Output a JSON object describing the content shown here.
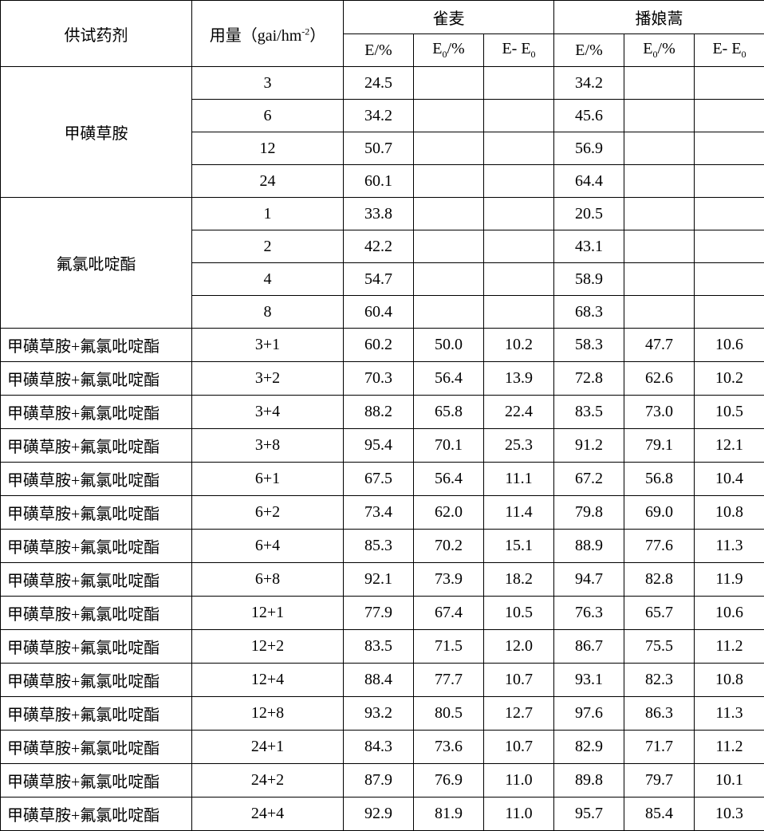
{
  "headers": {
    "agent": "供试药剂",
    "dose": "用量（gai/hm",
    "dose_sup": "-2",
    "dose_close": "）",
    "weed1": "雀麦",
    "weed2": "播娘蒿",
    "E": "E/%",
    "E0": "E",
    "E0_sub": "0",
    "E0_suffix": "/%",
    "diff_a": "E- E",
    "diff_sub": "0"
  },
  "single": [
    {
      "name": "甲磺草胺",
      "rows": [
        {
          "dose": "3",
          "w1": "24.5",
          "w2": "34.2"
        },
        {
          "dose": "6",
          "w1": "34.2",
          "w2": "45.6"
        },
        {
          "dose": "12",
          "w1": "50.7",
          "w2": "56.9"
        },
        {
          "dose": "24",
          "w1": "60.1",
          "w2": "64.4"
        }
      ]
    },
    {
      "name": "氟氯吡啶酯",
      "rows": [
        {
          "dose": "1",
          "w1": "33.8",
          "w2": "20.5"
        },
        {
          "dose": "2",
          "w1": "42.2",
          "w2": "43.1"
        },
        {
          "dose": "4",
          "w1": "54.7",
          "w2": "58.9"
        },
        {
          "dose": "8",
          "w1": "60.4",
          "w2": "68.3"
        }
      ]
    }
  ],
  "combo_name": "甲磺草胺+氟氯吡啶酯",
  "combo": [
    {
      "dose": "3+1",
      "w1e": "60.2",
      "w1e0": "50.0",
      "w1d": "10.2",
      "w2e": "58.3",
      "w2e0": "47.7",
      "w2d": "10.6"
    },
    {
      "dose": "3+2",
      "w1e": "70.3",
      "w1e0": "56.4",
      "w1d": "13.9",
      "w2e": "72.8",
      "w2e0": "62.6",
      "w2d": "10.2"
    },
    {
      "dose": "3+4",
      "w1e": "88.2",
      "w1e0": "65.8",
      "w1d": "22.4",
      "w2e": "83.5",
      "w2e0": "73.0",
      "w2d": "10.5"
    },
    {
      "dose": "3+8",
      "w1e": "95.4",
      "w1e0": "70.1",
      "w1d": "25.3",
      "w2e": "91.2",
      "w2e0": "79.1",
      "w2d": "12.1"
    },
    {
      "dose": "6+1",
      "w1e": "67.5",
      "w1e0": "56.4",
      "w1d": "11.1",
      "w2e": "67.2",
      "w2e0": "56.8",
      "w2d": "10.4"
    },
    {
      "dose": "6+2",
      "w1e": "73.4",
      "w1e0": "62.0",
      "w1d": "11.4",
      "w2e": "79.8",
      "w2e0": "69.0",
      "w2d": "10.8"
    },
    {
      "dose": "6+4",
      "w1e": "85.3",
      "w1e0": "70.2",
      "w1d": "15.1",
      "w2e": "88.9",
      "w2e0": "77.6",
      "w2d": "11.3"
    },
    {
      "dose": "6+8",
      "w1e": "92.1",
      "w1e0": "73.9",
      "w1d": "18.2",
      "w2e": "94.7",
      "w2e0": "82.8",
      "w2d": "11.9"
    },
    {
      "dose": "12+1",
      "w1e": "77.9",
      "w1e0": "67.4",
      "w1d": "10.5",
      "w2e": "76.3",
      "w2e0": "65.7",
      "w2d": "10.6"
    },
    {
      "dose": "12+2",
      "w1e": "83.5",
      "w1e0": "71.5",
      "w1d": "12.0",
      "w2e": "86.7",
      "w2e0": "75.5",
      "w2d": "11.2"
    },
    {
      "dose": "12+4",
      "w1e": "88.4",
      "w1e0": "77.7",
      "w1d": "10.7",
      "w2e": "93.1",
      "w2e0": "82.3",
      "w2d": "10.8"
    },
    {
      "dose": "12+8",
      "w1e": "93.2",
      "w1e0": "80.5",
      "w1d": "12.7",
      "w2e": "97.6",
      "w2e0": "86.3",
      "w2d": "11.3"
    },
    {
      "dose": "24+1",
      "w1e": "84.3",
      "w1e0": "73.6",
      "w1d": "10.7",
      "w2e": "82.9",
      "w2e0": "71.7",
      "w2d": "11.2"
    },
    {
      "dose": "24+2",
      "w1e": "87.9",
      "w1e0": "76.9",
      "w1d": "11.0",
      "w2e": "89.8",
      "w2e0": "79.7",
      "w2d": "10.1"
    },
    {
      "dose": "24+4",
      "w1e": "92.9",
      "w1e0": "81.9",
      "w1d": "11.0",
      "w2e": "95.7",
      "w2e0": "85.4",
      "w2d": "10.3"
    }
  ]
}
